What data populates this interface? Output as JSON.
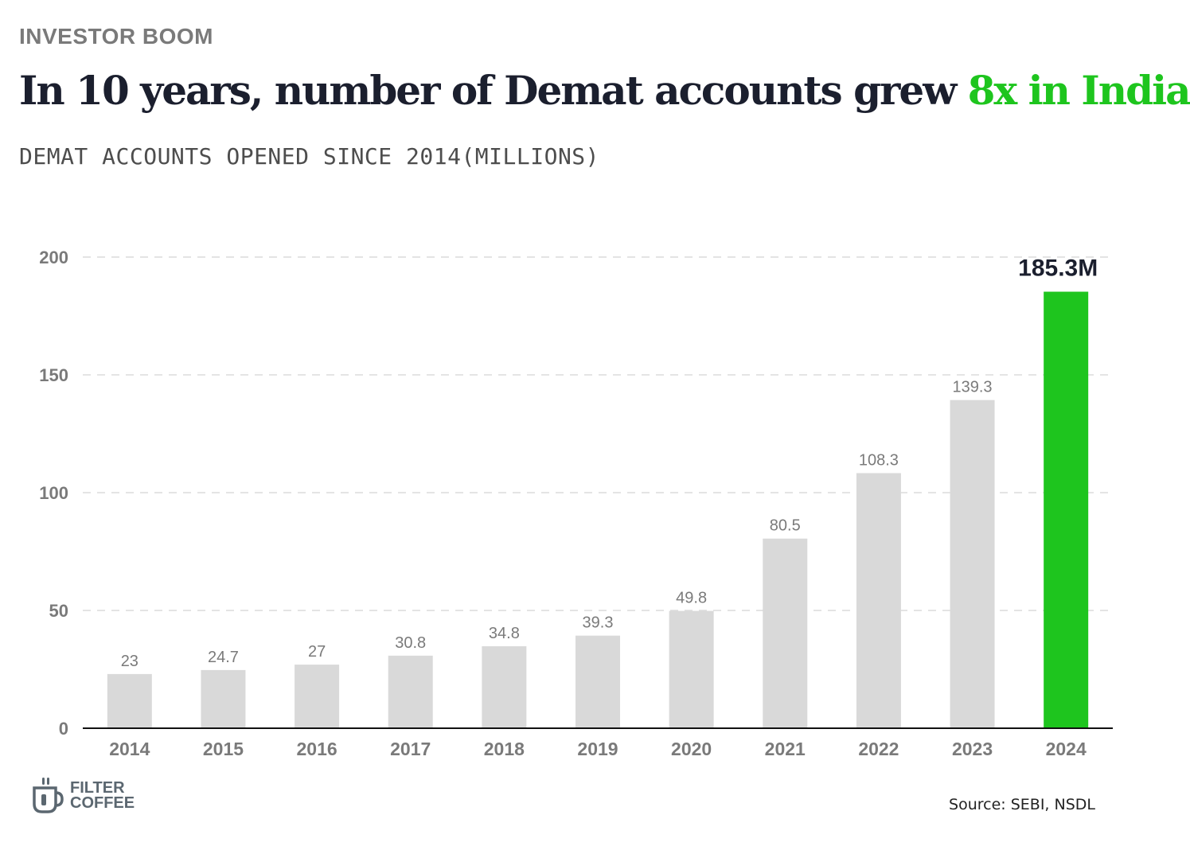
{
  "header": {
    "kicker": "INVESTOR BOOM",
    "title_main": "In 10 years, number of Demat accounts grew ",
    "title_accent": "8x in India",
    "subtitle": "DEMAT ACCOUNTS OPENED SINCE 2014(MILLIONS)"
  },
  "chart_data": {
    "type": "bar",
    "title": "In 10 years, number of Demat accounts grew 8x in India",
    "subtitle": "DEMAT ACCOUNTS OPENED SINCE 2014(MILLIONS)",
    "categories": [
      "2014",
      "2015",
      "2016",
      "2017",
      "2018",
      "2019",
      "2020",
      "2021",
      "2022",
      "2023",
      "2024"
    ],
    "values": [
      23,
      24.7,
      27,
      30.8,
      34.8,
      39.3,
      49.8,
      80.5,
      108.3,
      139.3,
      185.3
    ],
    "data_labels": [
      "23",
      "24.7",
      "27",
      "30.8",
      "34.8",
      "39.3",
      "49.8",
      "80.5",
      "108.3",
      "139.3",
      "185.3M"
    ],
    "yticks": [
      0,
      50,
      100,
      150,
      200
    ],
    "ylim": [
      0,
      200
    ],
    "grid": "horizontal dashed",
    "bar_color": "#d9d9d9",
    "highlight_index": 10,
    "highlight_color": "#1ec51e"
  },
  "footer": {
    "logo_line1": "FILTER",
    "logo_line2": "COFFEE",
    "source": "Source: SEBI, NSDL"
  }
}
